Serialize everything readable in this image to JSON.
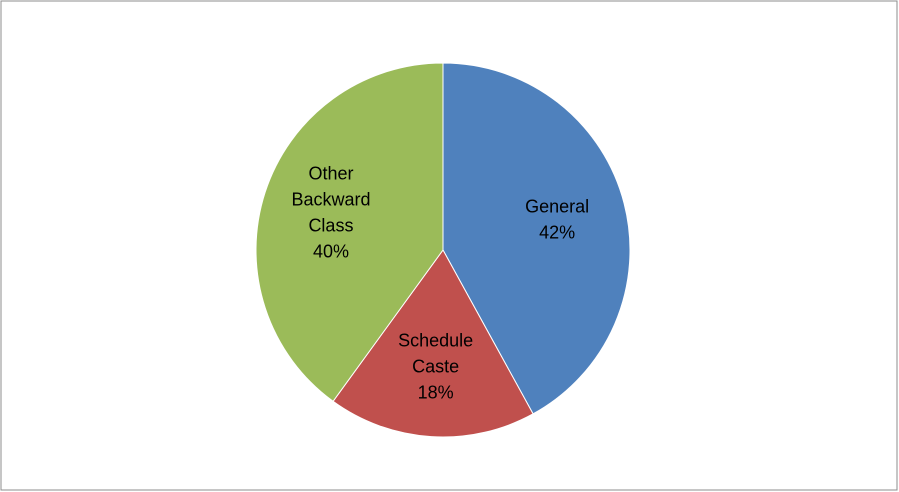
{
  "chart_data": {
    "type": "pie",
    "categories": [
      "General",
      "Schedule Caste",
      "Other Backward Class"
    ],
    "values": [
      42,
      18,
      40
    ],
    "value_labels": [
      "42%",
      "18%",
      "40%"
    ],
    "colors": [
      "#4f81bd",
      "#c0504d",
      "#9bbb59"
    ]
  }
}
